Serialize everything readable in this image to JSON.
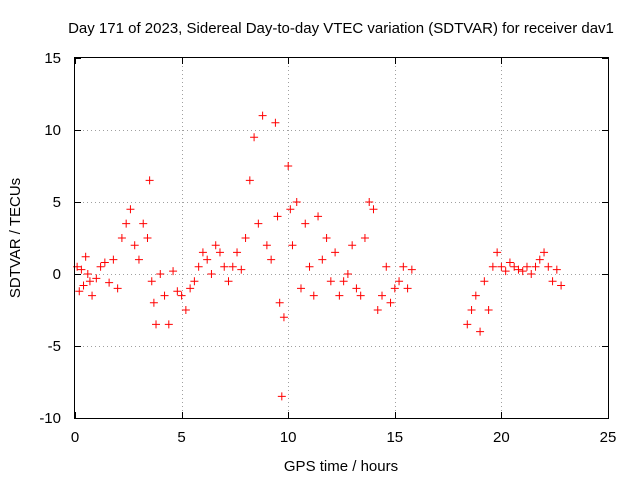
{
  "chart_data": {
    "type": "scatter",
    "title": "Day 171 of 2023, Sidereal Day-to-day VTEC variation (SDTVAR) for receiver dav1",
    "xlabel": "GPS time / hours",
    "ylabel": "SDTVAR / TECUs",
    "xlim": [
      0,
      25
    ],
    "ylim": [
      -10,
      15
    ],
    "xticks": [
      0,
      5,
      10,
      15,
      20,
      25
    ],
    "yticks": [
      -10,
      -5,
      0,
      5,
      10,
      15
    ],
    "grid": true,
    "marker": "+",
    "color": "#ff0000",
    "series": [
      {
        "name": "SDTVAR",
        "x": [
          0.1,
          0.2,
          0.3,
          0.4,
          0.5,
          0.6,
          0.7,
          0.8,
          1.0,
          1.2,
          1.4,
          1.6,
          1.8,
          2.0,
          2.2,
          2.4,
          2.6,
          2.8,
          3.0,
          3.2,
          3.4,
          3.5,
          3.6,
          3.7,
          3.8,
          4.0,
          4.2,
          4.4,
          4.6,
          4.8,
          5.0,
          5.2,
          5.4,
          5.6,
          5.8,
          6.0,
          6.2,
          6.4,
          6.6,
          6.8,
          7.0,
          7.2,
          7.4,
          7.6,
          7.8,
          8.0,
          8.2,
          8.4,
          8.6,
          8.8,
          9.0,
          9.2,
          9.4,
          9.5,
          9.6,
          9.7,
          9.8,
          10.0,
          10.1,
          10.2,
          10.4,
          10.6,
          10.8,
          11.0,
          11.2,
          11.4,
          11.6,
          11.8,
          12.0,
          12.2,
          12.4,
          12.6,
          12.8,
          13.0,
          13.2,
          13.4,
          13.6,
          13.8,
          14.0,
          14.2,
          14.4,
          14.6,
          14.8,
          15.0,
          15.2,
          15.4,
          15.6,
          15.8,
          18.4,
          18.6,
          18.8,
          19.0,
          19.2,
          19.4,
          19.6,
          19.8,
          20.0,
          20.2,
          20.4,
          20.6,
          20.8,
          21.0,
          21.2,
          21.4,
          21.6,
          21.8,
          22.0,
          22.2,
          22.4,
          22.6,
          22.8
        ],
        "y": [
          0.5,
          -1.2,
          0.3,
          -0.8,
          1.2,
          0.0,
          -0.5,
          -1.5,
          -0.3,
          0.5,
          0.8,
          -0.6,
          1.0,
          -1.0,
          2.5,
          3.5,
          4.5,
          2.0,
          1.0,
          3.5,
          2.5,
          6.5,
          -0.5,
          -2.0,
          -3.5,
          0.0,
          -1.5,
          -3.5,
          0.2,
          -1.2,
          -1.5,
          -2.5,
          -1.0,
          -0.5,
          0.5,
          1.5,
          1.0,
          0.0,
          2.0,
          1.5,
          0.5,
          -0.5,
          0.5,
          1.5,
          0.3,
          2.5,
          6.5,
          9.5,
          3.5,
          11.0,
          2.0,
          1.0,
          10.5,
          4.0,
          -2.0,
          -8.5,
          -3.0,
          7.5,
          4.5,
          2.0,
          5.0,
          -1.0,
          3.5,
          0.5,
          -1.5,
          4.0,
          1.0,
          2.5,
          -0.5,
          1.5,
          -1.5,
          -0.5,
          0.0,
          2.0,
          -1.0,
          -1.5,
          2.5,
          5.0,
          4.5,
          -2.5,
          -1.5,
          0.5,
          -2.0,
          -1.0,
          -0.5,
          0.5,
          -1.0,
          0.3,
          -3.5,
          -2.5,
          -1.5,
          -4.0,
          -0.5,
          -2.5,
          0.5,
          1.5,
          0.5,
          0.2,
          0.8,
          0.5,
          0.3,
          0.2,
          0.5,
          0.0,
          0.5,
          1.0,
          1.5,
          0.5,
          -0.5,
          0.3,
          -0.8
        ]
      }
    ]
  }
}
